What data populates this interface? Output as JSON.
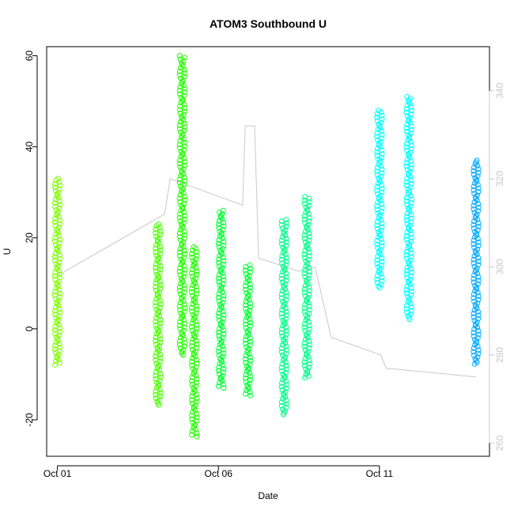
{
  "chart_data": {
    "type": "scatter",
    "title": "ATOM3 Southbound U",
    "xlabel": "Date",
    "ylabel": "U",
    "x_axis": {
      "range": [
        "2013-09-30T16:00",
        "2013-10-14T10:00"
      ],
      "ticks": [
        {
          "value": "2013-10-01",
          "label": "Oct 01"
        },
        {
          "value": "2013-10-06",
          "label": "Oct 06"
        },
        {
          "value": "2013-10-11",
          "label": "Oct 11"
        }
      ]
    },
    "y_axis_left": {
      "range": [
        -28,
        62
      ],
      "ticks": [
        -20,
        0,
        20,
        40,
        60
      ]
    },
    "y_axis_right": {
      "range": [
        257,
        350
      ],
      "ticks": [
        260,
        280,
        300,
        320,
        340
      ],
      "color": "#c8c8c8"
    },
    "grid": false,
    "legend": "none",
    "point_shape": "open circle",
    "point_series": [
      {
        "color": "#7fff00",
        "points": [
          {
            "x": "2013-10-01T00:00",
            "y": [
              -8,
              33
            ]
          }
        ]
      },
      {
        "color": "#4cff00",
        "points": [
          {
            "x": "2013-10-04T03:00",
            "y": [
              -17,
              23
            ]
          }
        ]
      },
      {
        "color": "#22ff00",
        "points": [
          {
            "x": "2013-10-04T21:00",
            "y": [
              -6,
              60
            ]
          },
          {
            "x": "2013-10-05T06:00",
            "y": [
              -24,
              18
            ]
          }
        ]
      },
      {
        "color": "#00ff33",
        "points": [
          {
            "x": "2013-10-06T02:00",
            "y": [
              -13,
              26
            ]
          },
          {
            "x": "2013-10-06T22:00",
            "y": [
              -15,
              14
            ]
          }
        ]
      },
      {
        "color": "#00ff88",
        "points": [
          {
            "x": "2013-10-08T01:00",
            "y": [
              -19,
              24
            ]
          },
          {
            "x": "2013-10-08T18:00",
            "y": [
              -11,
              29
            ]
          }
        ]
      },
      {
        "color": "#00ffff",
        "points": [
          {
            "x": "2013-10-11T00:00",
            "y": [
              9,
              48
            ]
          },
          {
            "x": "2013-10-11T22:00",
            "y": [
              2,
              51
            ]
          }
        ]
      },
      {
        "color": "#00aaff",
        "points": [
          {
            "x": "2013-10-14T00:00",
            "y": [
              -8,
              37
            ]
          }
        ]
      }
    ],
    "line_series": {
      "color": "#c8c8c8",
      "axis": "right",
      "points": [
        [
          "2013-10-01T00:00",
          298
        ],
        [
          "2013-10-04T08:00",
          312
        ],
        [
          "2013-10-04T12:00",
          320
        ],
        [
          "2013-10-05T06:00",
          318
        ],
        [
          "2013-10-06T18:00",
          314
        ],
        [
          "2013-10-06T20:00",
          332
        ],
        [
          "2013-10-07T03:00",
          332
        ],
        [
          "2013-10-07T06:00",
          302
        ],
        [
          "2013-10-08T12:00",
          299
        ],
        [
          "2013-10-09T00:00",
          300
        ],
        [
          "2013-10-09T12:00",
          284
        ],
        [
          "2013-10-11T01:00",
          280
        ],
        [
          "2013-10-11T05:00",
          277
        ],
        [
          "2013-10-14T00:00",
          275
        ]
      ]
    }
  }
}
